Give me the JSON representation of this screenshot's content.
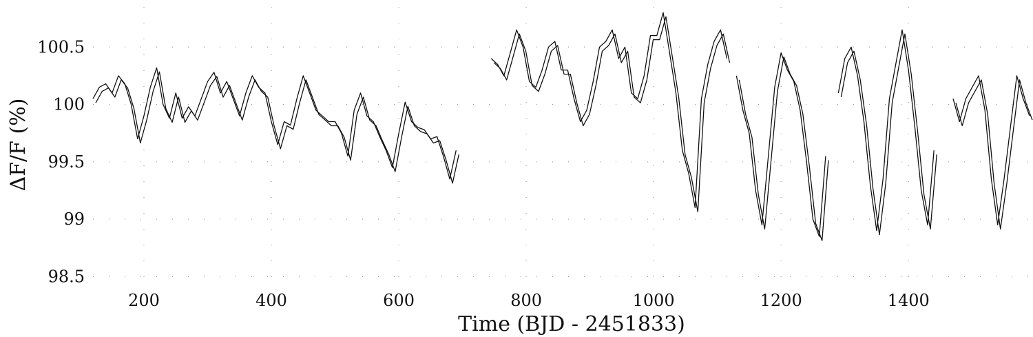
{
  "chart_data": {
    "type": "line",
    "title": "",
    "xlabel": "Time (BJD - 2451833)",
    "ylabel": "ΔF/F (%)",
    "xlim": [
      120,
      1590
    ],
    "ylim": [
      98.4,
      100.85
    ],
    "x_ticks": [
      200,
      400,
      600,
      800,
      1000,
      1200,
      1400
    ],
    "y_ticks": [
      98.5,
      99,
      99.5,
      100,
      100.5
    ],
    "x_tick_labels": [
      "200",
      "400",
      "600",
      "800",
      "1000",
      "1200",
      "1400"
    ],
    "y_tick_labels": [
      "98.5",
      "99",
      "99.5",
      "100",
      "100.5"
    ],
    "grid": true,
    "grid_style": "dotted",
    "legend": "none",
    "line_color": "#111111",
    "series": [
      {
        "segments": [
          [
            [
              120,
              100.05
            ],
            [
              130,
              100.15
            ],
            [
              140,
              100.18
            ],
            [
              150,
              100.1
            ],
            [
              160,
              100.25
            ],
            [
              170,
              100.18
            ],
            [
              180,
              100.0
            ],
            [
              190,
              99.7
            ],
            [
              200,
              99.9
            ],
            [
              210,
              100.15
            ],
            [
              220,
              100.32
            ],
            [
              230,
              100.0
            ],
            [
              240,
              99.88
            ],
            [
              250,
              100.1
            ],
            [
              260,
              99.88
            ],
            [
              270,
              99.98
            ],
            [
              280,
              99.9
            ],
            [
              290,
              100.05
            ],
            [
              300,
              100.2
            ],
            [
              310,
              100.28
            ],
            [
              320,
              100.1
            ],
            [
              330,
              100.2
            ],
            [
              340,
              100.05
            ],
            [
              350,
              99.9
            ],
            [
              360,
              100.1
            ],
            [
              370,
              100.25
            ],
            [
              380,
              100.15
            ],
            [
              390,
              100.1
            ],
            [
              400,
              99.85
            ],
            [
              410,
              99.65
            ],
            [
              420,
              99.85
            ],
            [
              430,
              99.82
            ],
            [
              440,
              100.05
            ],
            [
              450,
              100.25
            ],
            [
              460,
              100.1
            ],
            [
              470,
              99.95
            ],
            [
              480,
              99.9
            ],
            [
              490,
              99.85
            ],
            [
              500,
              99.85
            ],
            [
              510,
              99.75
            ],
            [
              520,
              99.55
            ],
            [
              530,
              99.95
            ],
            [
              540,
              100.1
            ],
            [
              550,
              99.9
            ],
            [
              560,
              99.85
            ],
            [
              570,
              99.72
            ],
            [
              580,
              99.6
            ],
            [
              590,
              99.45
            ],
            [
              600,
              99.75
            ],
            [
              610,
              100.02
            ],
            [
              620,
              99.85
            ],
            [
              630,
              99.8
            ],
            [
              640,
              99.78
            ],
            [
              650,
              99.7
            ],
            [
              660,
              99.72
            ],
            [
              670,
              99.55
            ],
            [
              680,
              99.35
            ],
            [
              690,
              99.6
            ]
          ],
          [
            [
              745,
              100.4
            ],
            [
              755,
              100.35
            ],
            [
              765,
              100.25
            ],
            [
              775,
              100.45
            ],
            [
              785,
              100.65
            ],
            [
              795,
              100.5
            ],
            [
              805,
              100.2
            ],
            [
              815,
              100.15
            ],
            [
              825,
              100.3
            ],
            [
              835,
              100.5
            ],
            [
              845,
              100.55
            ],
            [
              855,
              100.3
            ],
            [
              865,
              100.3
            ],
            [
              875,
              100.05
            ],
            [
              885,
              99.85
            ],
            [
              895,
              99.95
            ],
            [
              905,
              100.2
            ],
            [
              915,
              100.5
            ],
            [
              925,
              100.55
            ],
            [
              935,
              100.65
            ],
            [
              945,
              100.4
            ],
            [
              955,
              100.5
            ],
            [
              965,
              100.1
            ],
            [
              975,
              100.05
            ],
            [
              985,
              100.25
            ],
            [
              995,
              100.6
            ],
            [
              1005,
              100.6
            ],
            [
              1015,
              100.8
            ],
            [
              1025,
              100.45
            ],
            [
              1035,
              100.1
            ],
            [
              1045,
              99.6
            ],
            [
              1055,
              99.4
            ],
            [
              1065,
              99.1
            ],
            [
              1075,
              100.05
            ],
            [
              1085,
              100.35
            ],
            [
              1095,
              100.55
            ],
            [
              1105,
              100.65
            ],
            [
              1115,
              100.4
            ]
          ],
          [
            [
              1130,
              100.25
            ],
            [
              1140,
              99.95
            ],
            [
              1150,
              99.75
            ],
            [
              1160,
              99.25
            ],
            [
              1170,
              98.95
            ],
            [
              1180,
              99.55
            ],
            [
              1190,
              100.15
            ],
            [
              1200,
              100.45
            ],
            [
              1210,
              100.3
            ],
            [
              1220,
              100.2
            ],
            [
              1230,
              99.95
            ],
            [
              1240,
              99.5
            ],
            [
              1250,
              99.0
            ],
            [
              1260,
              98.85
            ],
            [
              1270,
              99.55
            ]
          ],
          [
            [
              1290,
              100.1
            ],
            [
              1300,
              100.4
            ],
            [
              1310,
              100.5
            ],
            [
              1320,
              100.25
            ],
            [
              1330,
              99.85
            ],
            [
              1340,
              99.3
            ],
            [
              1350,
              98.9
            ],
            [
              1360,
              99.35
            ],
            [
              1370,
              100.05
            ],
            [
              1380,
              100.35
            ],
            [
              1390,
              100.65
            ],
            [
              1400,
              100.3
            ],
            [
              1410,
              99.8
            ],
            [
              1420,
              99.25
            ],
            [
              1430,
              98.95
            ],
            [
              1440,
              99.6
            ]
          ],
          [
            [
              1470,
              100.05
            ],
            [
              1480,
              99.85
            ],
            [
              1490,
              100.05
            ],
            [
              1500,
              100.15
            ],
            [
              1510,
              100.25
            ],
            [
              1520,
              99.95
            ],
            [
              1530,
              99.35
            ],
            [
              1540,
              98.95
            ],
            [
              1550,
              99.35
            ],
            [
              1560,
              99.8
            ],
            [
              1570,
              100.25
            ],
            [
              1580,
              100.05
            ],
            [
              1590,
              99.9
            ]
          ]
        ]
      }
    ]
  }
}
